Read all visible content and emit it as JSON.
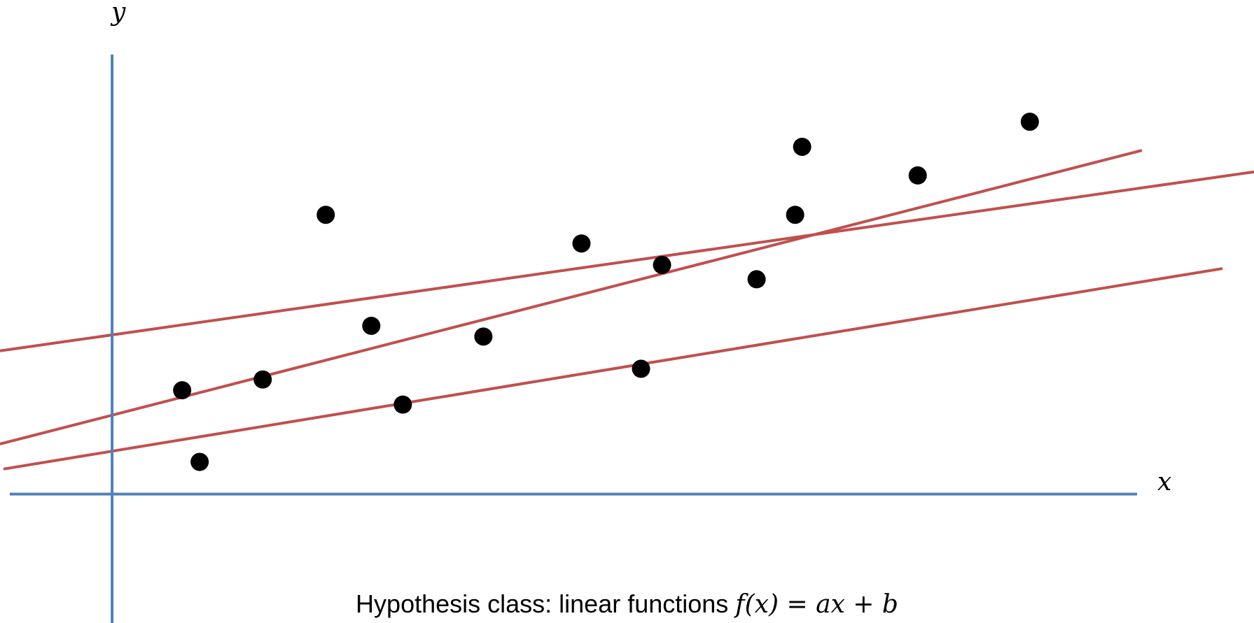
{
  "colors": {
    "axis": "#4f81bd",
    "line": "#c0504d",
    "point": "#000000",
    "background": "#ffffff"
  },
  "axes": {
    "x_label": "x",
    "y_label": "y"
  },
  "caption": {
    "prefix": "Hypothesis class:  linear functions ",
    "formula": "f(x) = ax + b"
  },
  "chart_data": {
    "type": "scatter",
    "xlim": [
      -1.6,
      16.3
    ],
    "ylim": [
      -1.8,
      6.9
    ],
    "points": [
      {
        "x": 1.0,
        "y": 1.45
      },
      {
        "x": 1.25,
        "y": 0.45
      },
      {
        "x": 2.15,
        "y": 1.6
      },
      {
        "x": 3.05,
        "y": 3.9
      },
      {
        "x": 3.7,
        "y": 2.35
      },
      {
        "x": 4.15,
        "y": 1.25
      },
      {
        "x": 5.3,
        "y": 2.2
      },
      {
        "x": 6.7,
        "y": 3.5
      },
      {
        "x": 7.55,
        "y": 1.75
      },
      {
        "x": 7.85,
        "y": 3.2
      },
      {
        "x": 9.2,
        "y": 3.0
      },
      {
        "x": 9.75,
        "y": 3.9
      },
      {
        "x": 9.85,
        "y": 4.85
      },
      {
        "x": 11.5,
        "y": 4.45
      },
      {
        "x": 13.1,
        "y": 5.2
      }
    ],
    "lines": [
      {
        "x": [
          -1.6,
          16.3
        ],
        "y": [
          2.0,
          4.5
        ]
      },
      {
        "x": [
          -1.6,
          14.7
        ],
        "y": [
          0.7,
          4.8
        ]
      },
      {
        "x": [
          -1.55,
          15.85
        ],
        "y": [
          0.35,
          3.15
        ]
      }
    ]
  }
}
